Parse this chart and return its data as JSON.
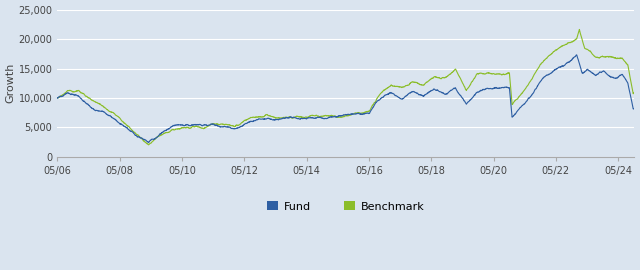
{
  "ylabel": "Growth",
  "background_color": "#dae4ef",
  "plot_bg_color": "#dae4ef",
  "fund_color": "#2E5FA3",
  "benchmark_color": "#8BBD2A",
  "ylim": [
    0,
    25000
  ],
  "yticks": [
    0,
    5000,
    10000,
    15000,
    20000,
    25000
  ],
  "ytick_labels": [
    "0",
    "5,000",
    "10,000",
    "15,000",
    "20,000",
    "25,000"
  ],
  "xtick_labels": [
    "05/06",
    "05/08",
    "05/10",
    "05/12",
    "05/14",
    "05/16",
    "05/18",
    "05/20",
    "05/22",
    "05/24"
  ],
  "legend_labels": [
    "Fund",
    "Benchmark"
  ],
  "linewidth": 0.8
}
